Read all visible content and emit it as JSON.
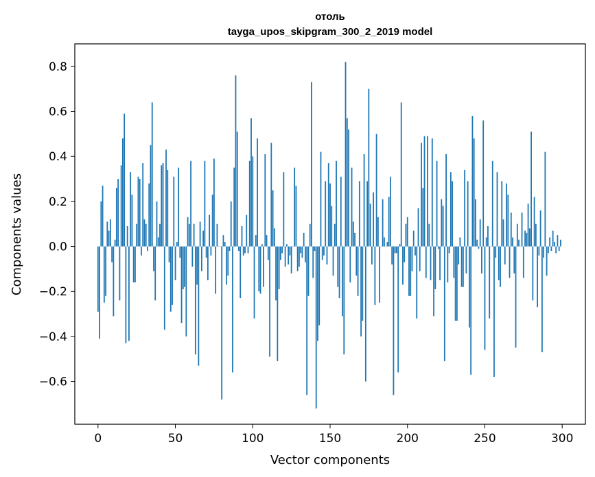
{
  "chart_data": {
    "type": "bar",
    "title": "отоль",
    "subtitle": "tayga_upos_skipgram_300_2_2019 model",
    "xlabel": "Vector components",
    "ylabel": "Components values",
    "xlim": [
      -15,
      315
    ],
    "ylim": [
      -0.79,
      0.9
    ],
    "xticks": [
      0,
      50,
      100,
      150,
      200,
      250,
      300
    ],
    "xtick_labels": [
      "0",
      "50",
      "100",
      "150",
      "200",
      "250",
      "300"
    ],
    "yticks": [
      -0.6,
      -0.4,
      -0.2,
      0.0,
      0.2,
      0.4,
      0.6,
      0.8
    ],
    "ytick_labels": [
      "−0.6",
      "−0.4",
      "−0.2",
      "0.0",
      "0.2",
      "0.4",
      "0.6",
      "0.8"
    ],
    "bar_color": "#1f77b4",
    "grid": false,
    "x": "0..299",
    "values": [
      -0.29,
      -0.41,
      0.2,
      0.27,
      -0.25,
      -0.22,
      0.11,
      0.07,
      0.12,
      -0.07,
      -0.31,
      0.03,
      0.26,
      0.3,
      -0.24,
      0.36,
      0.48,
      0.59,
      -0.43,
      0.09,
      -0.42,
      0.33,
      0.23,
      -0.16,
      -0.16,
      0.1,
      0.31,
      0.3,
      -0.04,
      0.37,
      0.12,
      0.1,
      -0.02,
      0.28,
      0.45,
      0.64,
      -0.11,
      -0.24,
      0.2,
      0.04,
      0.1,
      0.36,
      0.37,
      -0.37,
      0.43,
      0.34,
      -0.07,
      -0.29,
      -0.26,
      0.31,
      -0.15,
      0.02,
      0.35,
      -0.05,
      -0.34,
      -0.19,
      -0.18,
      -0.4,
      0.13,
      0.1,
      0.38,
      -0.09,
      0.1,
      -0.48,
      -0.17,
      -0.53,
      0.11,
      -0.11,
      0.07,
      0.38,
      -0.05,
      -0.15,
      0.14,
      -0.04,
      0.23,
      0.39,
      -0.21,
      0.1,
      0.0,
      0.0,
      -0.68,
      0.05,
      0.02,
      -0.17,
      -0.13,
      -0.02,
      0.2,
      -0.56,
      0.35,
      0.76,
      0.51,
      -0.02,
      -0.23,
      0.09,
      -0.04,
      -0.03,
      0.14,
      -0.03,
      0.38,
      0.57,
      0.4,
      -0.32,
      0.05,
      0.48,
      -0.2,
      -0.21,
      0.01,
      -0.18,
      0.41,
      0.05,
      -0.06,
      -0.49,
      0.46,
      0.25,
      0.08,
      -0.24,
      -0.51,
      -0.19,
      -0.06,
      -0.03,
      0.33,
      -0.09,
      0.01,
      -0.08,
      -0.04,
      -0.12,
      0.0,
      0.35,
      0.27,
      -0.11,
      -0.09,
      -0.03,
      -0.05,
      0.06,
      -0.07,
      -0.66,
      -0.22,
      0.1,
      0.73,
      -0.14,
      -0.02,
      -0.72,
      -0.42,
      -0.35,
      0.42,
      -0.06,
      -0.04,
      0.29,
      -0.08,
      0.37,
      0.28,
      0.18,
      -0.13,
      0.1,
      0.38,
      -0.18,
      -0.23,
      0.31,
      -0.31,
      -0.48,
      0.82,
      0.57,
      0.52,
      -0.16,
      0.35,
      0.11,
      0.06,
      -0.13,
      -0.22,
      0.29,
      -0.4,
      -0.33,
      0.41,
      -0.6,
      0.29,
      0.7,
      0.19,
      -0.08,
      0.24,
      -0.26,
      0.5,
      0.13,
      -0.25,
      0.0,
      0.21,
      0.04,
      0.0,
      0.02,
      0.22,
      0.31,
      -0.08,
      -0.66,
      -0.03,
      -0.03,
      -0.56,
      0.01,
      0.64,
      -0.17,
      -0.07,
      0.1,
      0.13,
      -0.22,
      -0.22,
      -0.11,
      0.07,
      -0.04,
      -0.32,
      0.17,
      -0.11,
      0.46,
      0.26,
      0.49,
      -0.14,
      0.49,
      0.1,
      -0.15,
      0.48,
      -0.31,
      -0.19,
      0.38,
      -0.01,
      -0.15,
      0.21,
      0.18,
      -0.51,
      0.41,
      -0.16,
      -0.03,
      0.33,
      0.29,
      -0.14,
      -0.33,
      -0.33,
      -0.08,
      0.04,
      -0.18,
      -0.18,
      0.34,
      -0.12,
      0.29,
      -0.36,
      -0.57,
      0.58,
      0.48,
      0.21,
      0.03,
      -0.01,
      0.12,
      -0.12,
      0.56,
      -0.46,
      0.04,
      0.09,
      -0.32,
      0.0,
      0.38,
      -0.58,
      -0.05,
      0.33,
      -0.15,
      -0.18,
      0.29,
      0.12,
      -0.08,
      0.28,
      0.23,
      -0.14,
      0.15,
      0.04,
      -0.12,
      -0.45,
      0.1,
      0.03,
      0.0,
      0.15,
      -0.14,
      0.07,
      0.06,
      0.19,
      0.08,
      0.51,
      -0.24,
      0.22,
      0.1,
      -0.27,
      -0.04,
      0.16,
      -0.47,
      -0.05,
      0.42,
      -0.13,
      -0.03,
      0.04,
      -0.02,
      0.07,
      0.02,
      -0.03,
      0.05,
      -0.02,
      0.03
    ]
  }
}
